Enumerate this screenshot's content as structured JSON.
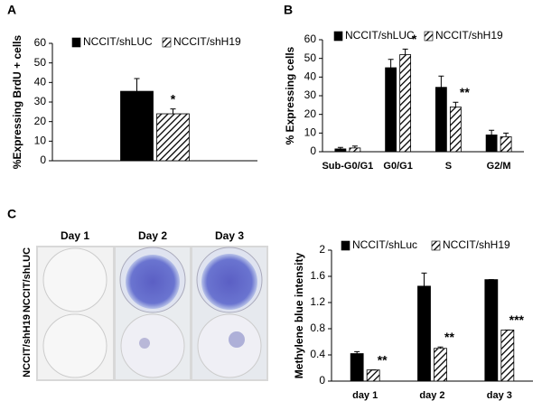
{
  "chart_data": [
    {
      "type": "bar",
      "panel_label": "A",
      "ylabel": "%Expressing BrdU + cells",
      "categories": [
        null
      ],
      "series": [
        {
          "name": "NCCIT/shLUC",
          "color": "#000000",
          "values": [
            35.5
          ],
          "errors": [
            6.5
          ]
        },
        {
          "name": "NCCIT/shH19",
          "color": "hatch",
          "values": [
            24
          ],
          "errors": [
            2.5
          ]
        }
      ],
      "annotations": [
        "*"
      ],
      "ylim": [
        0,
        60
      ],
      "yticks": [
        0,
        10,
        20,
        30,
        40,
        50,
        60
      ]
    },
    {
      "type": "bar",
      "panel_label": "B",
      "ylabel": "% Expressing cells",
      "categories": [
        "Sub-G0/G1",
        "G0/G1",
        "S",
        "G2/M"
      ],
      "series": [
        {
          "name": "NCCIT/shLUC",
          "color": "#000000",
          "values": [
            1.5,
            45,
            34.5,
            9
          ],
          "errors": [
            0.8,
            4.5,
            6,
            2.5
          ]
        },
        {
          "name": "NCCIT/shH19",
          "color": "hatch",
          "values": [
            2,
            52,
            24,
            8
          ],
          "errors": [
            1,
            3,
            2.5,
            2
          ]
        }
      ],
      "annotations": [
        null,
        "*",
        "**",
        null
      ],
      "ylim": [
        0,
        60
      ],
      "yticks": [
        0,
        10,
        20,
        30,
        40,
        50,
        60
      ]
    },
    {
      "type": "bar",
      "ylabel": "Methylene blue intensity",
      "categories": [
        "day 1",
        "day 2",
        "day 3"
      ],
      "series": [
        {
          "name": "NCCIT/shLuc",
          "color": "#000000",
          "values": [
            0.42,
            1.45,
            1.55
          ],
          "errors": [
            0.03,
            0.2,
            0
          ]
        },
        {
          "name": "NCCIT/shH19",
          "color": "hatch",
          "values": [
            0.17,
            0.5,
            0.78
          ],
          "errors": [
            0,
            0.02,
            0
          ]
        }
      ],
      "annotations": [
        "**",
        "**",
        "***"
      ],
      "ylim": [
        0,
        2
      ],
      "yticks": [
        0,
        0.4,
        0.8,
        1.2,
        1.6,
        2
      ]
    }
  ],
  "photo": {
    "panel_label": "C",
    "columns": [
      "Day 1",
      "Day 2",
      "Day 3"
    ],
    "rows": [
      "NCCIT/shLUC",
      "NCCIT/shH19"
    ]
  }
}
